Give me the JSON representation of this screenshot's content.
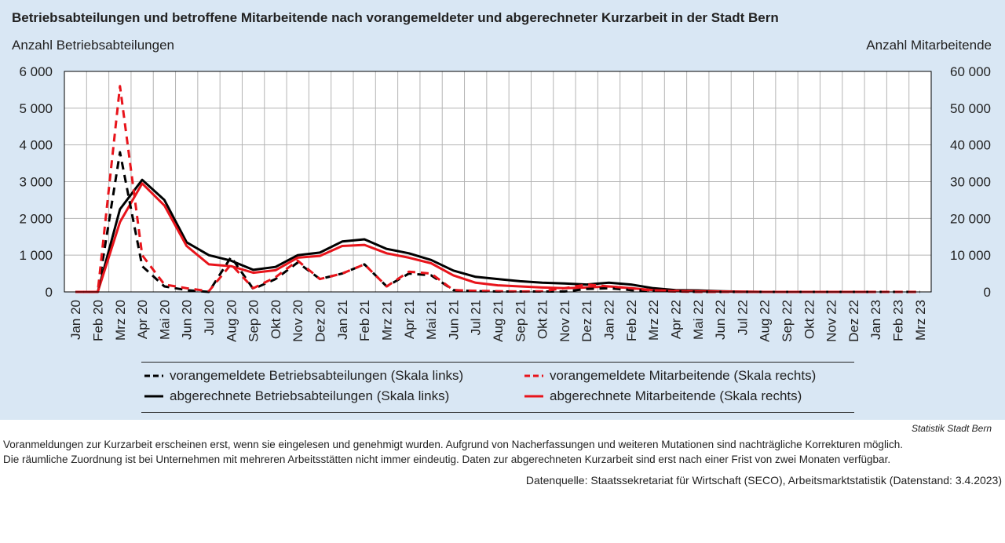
{
  "title": "Betriebsabteilungen und betroffene Mitarbeitende nach vorangemeldeter und abgerechneter Kurzarbeit in der Stadt Bern",
  "ylabel_left": "Anzahl Betriebsabteilungen",
  "ylabel_right": "Anzahl Mitarbeitende",
  "legend": {
    "item1": "vorangemeldete Betriebsabteilungen (Skala links)",
    "item2": "vorangemeldete Mitarbeitende (Skala rechts)",
    "item3": "abgerechnete Betriebsabteilungen (Skala links)",
    "item4": "abgerechnete Mitarbeitende (Skala rechts)"
  },
  "credit": "Statistik Stadt Bern",
  "notes": {
    "line1": "Voranmeldungen zur Kurzarbeit erscheinen erst, wenn sie eingelesen und genehmigt wurden. Aufgrund von Nacherfassungen und weiteren Mutationen sind nachträgliche Korrekturen möglich.",
    "line2": "Die räumliche Zuordnung ist bei Unternehmen mit mehreren Arbeitsstätten nicht immer eindeutig. Daten zur abgerechneten Kurzarbeit sind erst nach einer Frist von zwei Monaten verfügbar.",
    "source": "Datenquelle: Staatssekretariat für Wirtschaft (SECO), Arbeitsmarktstatistik (Datenstand: 3.4.2023)"
  },
  "colors": {
    "black": "#000000",
    "red": "#e8141b",
    "background": "#d9e7f4",
    "grid": "#b4b4b4"
  },
  "chart_data": {
    "type": "line",
    "title": "Betriebsabteilungen und betroffene Mitarbeitende nach vorangemeldeter und abgerechneter Kurzarbeit in der Stadt Bern",
    "xlabel": "",
    "ylabel": "Anzahl Betriebsabteilungen",
    "ylabel_right": "Anzahl Mitarbeitende",
    "grid": true,
    "legend_position": "bottom",
    "ylim": [
      0,
      6000
    ],
    "ylim_right": [
      0,
      60000
    ],
    "yticks_left": [
      "0",
      "1 000",
      "2 000",
      "3 000",
      "4 000",
      "5 000",
      "6 000"
    ],
    "yticks_right": [
      "0",
      "10 000",
      "20 000",
      "30 000",
      "40 000",
      "50 000",
      "60 000"
    ],
    "categories": [
      "Jan 20",
      "Feb 20",
      "Mrz 20",
      "Apr 20",
      "Mai 20",
      "Jun 20",
      "Jul 20",
      "Aug 20",
      "Sep 20",
      "Okt 20",
      "Nov 20",
      "Dez 20",
      "Jan 21",
      "Feb 21",
      "Mrz 21",
      "Apr 21",
      "Mai 21",
      "Jun 21",
      "Jul 21",
      "Aug 21",
      "Sep 21",
      "Okt 21",
      "Nov 21",
      "Dez 21",
      "Jan 22",
      "Feb 22",
      "Mrz 22",
      "Apr 22",
      "Mai 22",
      "Jun 22",
      "Jul 22",
      "Aug 22",
      "Sep 22",
      "Okt 22",
      "Nov 22",
      "Dez 22",
      "Jan 23",
      "Feb 23",
      "Mrz 23"
    ],
    "series": [
      {
        "name": "vorangemeldete Betriebsabteilungen (Skala links)",
        "axis": "left",
        "color": "#000000",
        "dash": true,
        "values": [
          0,
          0,
          3800,
          700,
          150,
          50,
          0,
          950,
          80,
          350,
          800,
          350,
          500,
          750,
          150,
          500,
          450,
          50,
          20,
          10,
          10,
          10,
          10,
          80,
          100,
          50,
          30,
          20,
          0,
          0,
          0,
          0,
          0,
          0,
          0,
          0,
          0,
          0,
          0
        ]
      },
      {
        "name": "vorangemeldete Mitarbeitende (Skala rechts)",
        "axis": "right",
        "color": "#e8141b",
        "dash": true,
        "values": [
          0,
          0,
          56000,
          10000,
          2000,
          1000,
          200,
          7500,
          1000,
          4000,
          8500,
          3500,
          5000,
          7500,
          1500,
          5500,
          5000,
          500,
          300,
          200,
          100,
          200,
          1000,
          2000,
          1500,
          1000,
          300,
          100,
          0,
          0,
          0,
          0,
          0,
          0,
          0,
          0,
          0,
          0,
          0
        ]
      },
      {
        "name": "abgerechnete Betriebsabteilungen (Skala links)",
        "axis": "left",
        "color": "#000000",
        "dash": false,
        "values": [
          0,
          0,
          2250,
          3050,
          2500,
          1350,
          1000,
          850,
          600,
          680,
          1000,
          1070,
          1370,
          1430,
          1170,
          1050,
          870,
          580,
          410,
          350,
          290,
          250,
          230,
          200,
          250,
          200,
          100,
          50,
          40,
          20,
          5,
          0,
          0,
          0,
          0,
          0,
          0,
          null,
          null
        ]
      },
      {
        "name": "abgerechnete Mitarbeitende (Skala rechts)",
        "axis": "right",
        "color": "#e8141b",
        "dash": false,
        "values": [
          0,
          0,
          19000,
          29500,
          23500,
          12500,
          7500,
          7000,
          5200,
          5900,
          9300,
          9800,
          12500,
          12800,
          10500,
          9300,
          7800,
          4500,
          2500,
          1800,
          1500,
          1200,
          1000,
          1200,
          1500,
          1000,
          500,
          300,
          200,
          100,
          50,
          0,
          0,
          0,
          0,
          0,
          0,
          null,
          null
        ]
      }
    ]
  }
}
